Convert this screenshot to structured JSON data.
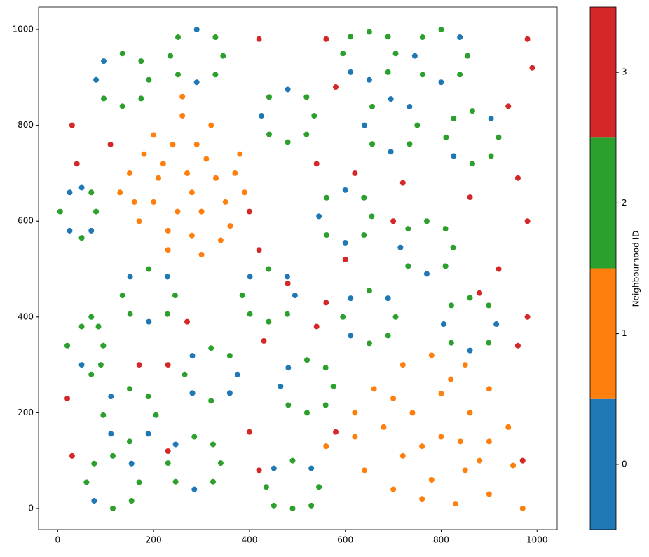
{
  "chart_data": {
    "type": "scatter",
    "x": [
      190,
      174,
      135,
      96,
      80,
      96,
      135,
      174,
      345,
      329,
      290,
      251,
      235,
      251,
      290,
      329,
      705,
      689,
      650,
      611,
      595,
      611,
      650,
      689,
      855,
      839,
      800,
      761,
      745,
      761,
      800,
      839,
      535,
      519,
      480,
      441,
      425,
      441,
      480,
      519,
      750,
      734,
      695,
      656,
      640,
      656,
      695,
      734,
      920,
      904,
      865,
      826,
      810,
      826,
      865,
      904,
      655,
      639,
      600,
      561,
      545,
      561,
      600,
      639,
      825,
      809,
      770,
      731,
      715,
      731,
      770,
      809,
      245,
      229,
      190,
      151,
      135,
      151,
      190,
      229,
      495,
      479,
      440,
      401,
      385,
      401,
      440,
      479,
      705,
      689,
      650,
      611,
      595,
      611,
      650,
      689,
      915,
      899,
      860,
      821,
      805,
      821,
      860,
      899,
      375,
      359,
      320,
      281,
      265,
      281,
      320,
      359,
      575,
      559,
      520,
      481,
      465,
      481,
      520,
      559,
      205,
      189,
      150,
      111,
      95,
      111,
      150,
      189,
      340,
      324,
      285,
      246,
      230,
      246,
      285,
      324,
      545,
      529,
      490,
      451,
      435,
      451,
      490,
      529,
      170,
      154,
      115,
      76,
      60,
      76,
      115,
      154,
      80,
      70,
      50,
      25,
      5,
      25,
      50,
      70,
      95,
      85,
      70,
      50,
      20,
      50,
      70,
      90,
      150,
      200,
      260,
      320,
      380,
      390,
      360,
      300,
      230,
      170,
      130,
      210,
      270,
      330,
      250,
      300,
      200,
      350,
      240,
      290,
      180,
      230,
      280,
      340,
      160,
      260,
      370,
      220,
      310,
      280,
      620,
      660,
      720,
      780,
      850,
      900,
      940,
      950,
      900,
      830,
      760,
      700,
      640,
      680,
      740,
      800,
      860,
      900,
      850,
      780,
      720,
      800,
      760,
      840,
      700,
      880,
      620,
      970,
      560,
      820,
      30,
      40,
      110,
      420,
      560,
      580,
      620,
      540,
      720,
      860,
      960,
      980,
      940,
      980,
      990,
      400,
      420,
      480,
      560,
      600,
      700,
      920,
      980,
      960,
      430,
      540,
      270,
      230,
      400,
      580,
      170,
      20,
      30,
      230,
      420,
      970,
      880
    ],
    "y": [
      895,
      934,
      950,
      934,
      895,
      856,
      840,
      856,
      945,
      984,
      1000,
      984,
      945,
      906,
      890,
      906,
      950,
      985,
      995,
      985,
      950,
      911,
      895,
      911,
      945,
      984,
      1000,
      984,
      945,
      906,
      890,
      906,
      820,
      859,
      875,
      859,
      820,
      781,
      765,
      781,
      800,
      839,
      855,
      839,
      800,
      761,
      745,
      761,
      775,
      814,
      830,
      814,
      775,
      736,
      720,
      736,
      610,
      649,
      665,
      649,
      610,
      571,
      555,
      571,
      545,
      584,
      600,
      584,
      545,
      506,
      490,
      506,
      445,
      484,
      500,
      484,
      445,
      406,
      390,
      406,
      445,
      484,
      500,
      484,
      445,
      406,
      390,
      406,
      400,
      439,
      455,
      439,
      400,
      361,
      345,
      361,
      385,
      424,
      440,
      424,
      385,
      346,
      330,
      346,
      280,
      319,
      335,
      319,
      280,
      241,
      225,
      241,
      255,
      294,
      310,
      294,
      255,
      216,
      200,
      216,
      195,
      234,
      250,
      234,
      195,
      156,
      140,
      156,
      95,
      134,
      150,
      134,
      95,
      56,
      40,
      56,
      45,
      84,
      100,
      84,
      45,
      6,
      0,
      6,
      55,
      94,
      110,
      94,
      55,
      16,
      0,
      16,
      620,
      660,
      670,
      660,
      620,
      580,
      565,
      580,
      340,
      380,
      400,
      380,
      340,
      300,
      280,
      300,
      700,
      780,
      820,
      800,
      740,
      660,
      590,
      530,
      540,
      600,
      660,
      690,
      700,
      690,
      620,
      620,
      640,
      640,
      760,
      760,
      740,
      580,
      570,
      560,
      640,
      860,
      700,
      720,
      730,
      660,
      150,
      250,
      300,
      320,
      300,
      250,
      170,
      90,
      30,
      10,
      20,
      40,
      80,
      170,
      200,
      240,
      200,
      140,
      80,
      60,
      110,
      150,
      130,
      140,
      230,
      100,
      200,
      0,
      130,
      270,
      800,
      720,
      760,
      980,
      980,
      880,
      700,
      720,
      680,
      650,
      690,
      600,
      840,
      980,
      920,
      620,
      540,
      470,
      430,
      520,
      600,
      500,
      400,
      340,
      350,
      380,
      390,
      300,
      160,
      160,
      300,
      230,
      110,
      120,
      80,
      100,
      450
    ],
    "c": [
      2,
      2,
      2,
      0,
      0,
      2,
      2,
      2,
      2,
      2,
      0,
      2,
      2,
      2,
      0,
      2,
      2,
      2,
      2,
      2,
      2,
      0,
      0,
      2,
      2,
      0,
      2,
      2,
      0,
      2,
      0,
      2,
      2,
      2,
      0,
      2,
      0,
      2,
      2,
      2,
      2,
      0,
      0,
      2,
      0,
      2,
      0,
      2,
      2,
      0,
      2,
      2,
      2,
      0,
      2,
      2,
      2,
      2,
      0,
      2,
      0,
      2,
      0,
      2,
      2,
      2,
      2,
      2,
      0,
      2,
      0,
      2,
      2,
      0,
      2,
      0,
      2,
      2,
      0,
      2,
      0,
      0,
      2,
      0,
      2,
      2,
      2,
      2,
      2,
      0,
      2,
      0,
      2,
      0,
      2,
      2,
      0,
      2,
      2,
      2,
      0,
      2,
      0,
      2,
      0,
      2,
      2,
      0,
      2,
      0,
      2,
      0,
      2,
      2,
      2,
      0,
      0,
      2,
      2,
      2,
      2,
      2,
      2,
      0,
      2,
      0,
      2,
      0,
      2,
      2,
      2,
      0,
      2,
      2,
      0,
      2,
      2,
      0,
      2,
      0,
      2,
      2,
      2,
      2,
      2,
      0,
      2,
      2,
      2,
      0,
      2,
      2,
      2,
      2,
      0,
      0,
      2,
      0,
      2,
      0,
      2,
      2,
      2,
      2,
      2,
      0,
      2,
      2,
      1,
      1,
      1,
      1,
      1,
      1,
      1,
      1,
      1,
      1,
      1,
      1,
      1,
      1,
      1,
      1,
      1,
      1,
      1,
      1,
      1,
      1,
      1,
      1,
      1,
      1,
      1,
      1,
      1,
      1,
      1,
      1,
      1,
      1,
      1,
      1,
      1,
      1,
      1,
      1,
      1,
      1,
      1,
      1,
      1,
      1,
      1,
      1,
      1,
      1,
      1,
      1,
      1,
      1,
      1,
      1,
      1,
      1,
      1,
      1,
      3,
      3,
      3,
      3,
      3,
      3,
      3,
      3,
      3,
      3,
      3,
      3,
      3,
      3,
      3,
      3,
      3,
      3,
      3,
      3,
      3,
      3,
      3,
      3,
      3,
      3,
      3,
      3,
      3,
      3,
      3,
      3,
      3,
      3,
      3,
      3,
      3
    ],
    "xlim": [
      -40,
      1042
    ],
    "ylim": [
      -44,
      1047
    ],
    "xticks": [
      0,
      200,
      400,
      600,
      800,
      1000
    ],
    "yticks": [
      0,
      200,
      400,
      600,
      800,
      1000
    ],
    "colors": [
      "#1f77b4",
      "#ff7f0e",
      "#2ca02c",
      "#d62728"
    ],
    "clim": [
      -0.5,
      3.5
    ],
    "colorbar_ticks": [
      0,
      1,
      2,
      3
    ],
    "colorbar_label": "Neighbourhood ID"
  }
}
